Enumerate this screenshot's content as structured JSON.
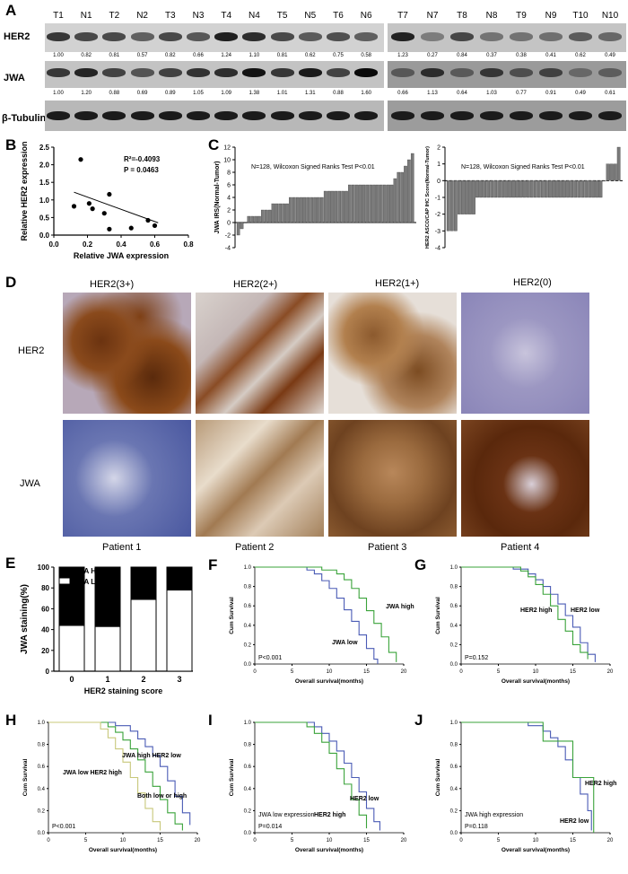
{
  "panel_labels": {
    "A": "A",
    "B": "B",
    "C": "C",
    "D": "D",
    "E": "E",
    "F": "F",
    "G": "G",
    "H": "H",
    "I": "I",
    "J": "J"
  },
  "panelA": {
    "lanes": [
      "T1",
      "N1",
      "T2",
      "N2",
      "T3",
      "N3",
      "T4",
      "N4",
      "T5",
      "N5",
      "T6",
      "N6",
      "T7",
      "N7",
      "T8",
      "N8",
      "T9",
      "N9",
      "T10",
      "N10"
    ],
    "rows": [
      "HER2",
      "JWA",
      "β-Tubulin"
    ],
    "her2_values": [
      "1.00",
      "0.82",
      "0.81",
      "0.57",
      "0.82",
      "0.66",
      "1.24",
      "1.10",
      "0.81",
      "0.62",
      "0.75",
      "0.58",
      "1.23",
      "0.27",
      "0.84",
      "0.37",
      "0.38",
      "0.41",
      "0.62",
      "0.49"
    ],
    "jwa_values": [
      "1.00",
      "1.20",
      "0.88",
      "0.69",
      "0.89",
      "1.05",
      "1.09",
      "1.38",
      "1.01",
      "1.31",
      "0.88",
      "1.60",
      "0.66",
      "1.13",
      "0.64",
      "1.03",
      "0.77",
      "0.91",
      "0.49",
      "0.61"
    ]
  },
  "panelB": {
    "r2_text": "R²=-0.4093",
    "p_text": "P = 0.0463",
    "xlabel": "Relative JWA expression",
    "ylabel": "Relative HER2 expression"
  },
  "panelC": {
    "left_text": "N=128, Wilcoxon Signed Ranks Test P<0.01",
    "left_ylabel": "JWA IRS(Normal-Tumor)",
    "right_text": "N=128, Wilcoxon Signed Ranks Test P<0.01",
    "right_ylabel": "HER2 ASCO/CAP IHC Score(Normal-Tumor)"
  },
  "panelD": {
    "columns": [
      "HER2(3+)",
      "HER2(2+)",
      "HER2(1+)",
      "HER2(0)"
    ],
    "rows": [
      "HER2",
      "JWA"
    ],
    "patients": [
      "Patient 1",
      "Patient 2",
      "Patient 3",
      "Patient 4"
    ]
  },
  "panelE": {
    "ylabel": "JWA staining(%)",
    "xlabel": "HER2 staining score",
    "legend_high": "JWA High",
    "legend_low": "JWA Low"
  },
  "panelF": {
    "ylabel": "Cum Survival",
    "xlabel": "Overall survival(months)",
    "p_text": "P<0.001",
    "label_a": "JWA low",
    "label_b": "JWA high"
  },
  "panelG": {
    "ylabel": "Cum Survival",
    "xlabel": "Overall survival(months)",
    "p_text": "P=0.152",
    "label_a": "HER2 high",
    "label_b": "HER2 low"
  },
  "panelH": {
    "ylabel": "Cum Survival",
    "xlabel": "Overall survival(months)",
    "p_text": "P<0.001",
    "label_a": "JWA high HER2 low",
    "label_b": "JWA low HER2 high",
    "label_c": "Both low or high"
  },
  "panelI": {
    "ylabel": "Cum Survival",
    "xlabel": "Overall survival(months)",
    "p_text": "P=0.014",
    "subtitle": "JWA low expression",
    "label_a": "HER2 low",
    "label_b": "HER2 high"
  },
  "panelJ": {
    "ylabel": "Cum Survival",
    "xlabel": "Overall survival(months)",
    "p_text": "P=0.118",
    "subtitle": "JWA high expression",
    "label_a": "HER2 high",
    "label_b": "HER2 low"
  },
  "chart_data": [
    {
      "type": "scatter",
      "id": "B",
      "xlabel": "Relative JWA expression",
      "ylabel": "Relative HER2 expression",
      "xlim": [
        0,
        0.8
      ],
      "ylim": [
        0,
        2.5
      ],
      "xticks": [
        "0.0",
        "0.2",
        "0.4",
        "0.6",
        "0.8"
      ],
      "yticks": [
        "0.0",
        "0.5",
        "1.0",
        "1.5",
        "2.0",
        "2.5"
      ],
      "points": [
        [
          0.12,
          0.82
        ],
        [
          0.16,
          2.15
        ],
        [
          0.21,
          0.9
        ],
        [
          0.23,
          0.75
        ],
        [
          0.3,
          0.62
        ],
        [
          0.33,
          1.16
        ],
        [
          0.33,
          0.17
        ],
        [
          0.46,
          0.2
        ],
        [
          0.56,
          0.42
        ],
        [
          0.6,
          0.27
        ]
      ],
      "fit": [
        [
          0.12,
          1.22
        ],
        [
          0.62,
          0.35
        ]
      ]
    },
    {
      "type": "bar",
      "id": "C-left",
      "ylabel": "JWA IRS(Normal-Tumor)",
      "ylim": [
        -4,
        12
      ],
      "yticks": [
        "-4",
        "-2",
        "0",
        "2",
        "4",
        "6",
        "8",
        "10",
        "12"
      ],
      "values": [
        -2,
        -1,
        0,
        1,
        1,
        1,
        1,
        2,
        2,
        2,
        3,
        3,
        3,
        3,
        3,
        4,
        4,
        4,
        4,
        4,
        4,
        4,
        4,
        4,
        4,
        5,
        5,
        5,
        5,
        5,
        5,
        5,
        6,
        6,
        6,
        6,
        6,
        6,
        6,
        6,
        6,
        6,
        6,
        6,
        6,
        7,
        8,
        8,
        9,
        10,
        11
      ]
    },
    {
      "type": "bar",
      "id": "C-right",
      "ylabel": "HER2 ASCO/CAP IHC Score(Normal-Tumor)",
      "ylim": [
        -4,
        2
      ],
      "yticks": [
        "-4",
        "-3",
        "-2",
        "-1",
        "0",
        "1",
        "2"
      ],
      "values": [
        -3,
        -3,
        -3,
        -2,
        -2,
        -2,
        -2,
        -2,
        -1,
        -1,
        -1,
        -1,
        -1,
        -1,
        -1,
        -1,
        -1,
        -1,
        -1,
        -1,
        -1,
        -1,
        -1,
        -1,
        -1,
        -1,
        -1,
        -1,
        -1,
        -1,
        -1,
        -1,
        -1,
        -1,
        -1,
        -1,
        -1,
        -1,
        -1,
        -1,
        -1,
        -1,
        -1,
        0,
        1,
        1,
        1,
        2
      ]
    },
    {
      "type": "bar",
      "id": "E",
      "categories": [
        "0",
        "1",
        "2",
        "3"
      ],
      "series": [
        {
          "name": "JWA High",
          "values": [
            56,
            57,
            31,
            22
          ]
        },
        {
          "name": "JWA Low",
          "values": [
            44,
            43,
            69,
            78
          ]
        }
      ],
      "ylim": [
        0,
        100
      ],
      "yticks": [
        "0",
        "20",
        "40",
        "60",
        "80",
        "100"
      ],
      "xlabel": "HER2 staining score",
      "ylabel": "JWA staining(%)"
    },
    {
      "type": "line",
      "id": "F",
      "xlim": [
        0,
        20
      ],
      "ylim": [
        0,
        1
      ],
      "xticks": [
        "0",
        "5",
        "10",
        "15",
        "20"
      ],
      "yticks": [
        "0.0",
        "0.2",
        "0.4",
        "0.6",
        "0.8",
        "1.0"
      ],
      "series": [
        {
          "name": "JWA low",
          "color": "#4a5bb5",
          "x": [
            0,
            5,
            7,
            8,
            9,
            10,
            11,
            12,
            13,
            14,
            15,
            16,
            16.5
          ],
          "y": [
            1,
            1,
            0.97,
            0.93,
            0.86,
            0.78,
            0.68,
            0.56,
            0.44,
            0.3,
            0.16,
            0.05,
            0
          ]
        },
        {
          "name": "JWA high",
          "color": "#3aa33a",
          "x": [
            0,
            7,
            9,
            11,
            12,
            13,
            14,
            15,
            16,
            17,
            18,
            19
          ],
          "y": [
            1,
            1,
            0.97,
            0.93,
            0.87,
            0.78,
            0.68,
            0.55,
            0.42,
            0.28,
            0.12,
            0.02
          ]
        }
      ]
    },
    {
      "type": "line",
      "id": "G",
      "xlim": [
        0,
        20
      ],
      "ylim": [
        0,
        1
      ],
      "xticks": [
        "0",
        "5",
        "10",
        "15",
        "20"
      ],
      "yticks": [
        "0.0",
        "0.2",
        "0.4",
        "0.6",
        "0.8",
        "1.0"
      ],
      "series": [
        {
          "name": "HER2 low",
          "color": "#4a5bb5",
          "x": [
            0,
            5,
            7,
            9,
            10,
            11,
            12,
            13,
            14,
            15,
            16,
            17,
            18
          ],
          "y": [
            1,
            1,
            0.98,
            0.93,
            0.87,
            0.8,
            0.72,
            0.62,
            0.5,
            0.38,
            0.22,
            0.1,
            0.02
          ]
        },
        {
          "name": "HER2 high",
          "color": "#3aa33a",
          "x": [
            0,
            6,
            8,
            9,
            10,
            11,
            12,
            13,
            14,
            15,
            16,
            17
          ],
          "y": [
            1,
            1,
            0.96,
            0.9,
            0.82,
            0.72,
            0.6,
            0.46,
            0.34,
            0.2,
            0.12,
            0.05
          ]
        }
      ]
    },
    {
      "type": "line",
      "id": "H",
      "xlim": [
        0,
        20
      ],
      "ylim": [
        0,
        1
      ],
      "xticks": [
        "0",
        "5",
        "10",
        "15",
        "20"
      ],
      "yticks": [
        "0.0",
        "0.2",
        "0.4",
        "0.6",
        "0.8",
        "1.0"
      ],
      "series": [
        {
          "name": "JWA high HER2 low",
          "color": "#4a5bb5",
          "x": [
            0,
            7,
            9,
            11,
            12,
            13,
            14,
            15,
            16,
            17,
            18,
            19
          ],
          "y": [
            1,
            1,
            0.97,
            0.92,
            0.85,
            0.78,
            0.7,
            0.6,
            0.47,
            0.33,
            0.18,
            0.07
          ]
        },
        {
          "name": "Both low or high",
          "color": "#3aa33a",
          "x": [
            0,
            6,
            8,
            9,
            10,
            11,
            12,
            13,
            14,
            15,
            16,
            17,
            18
          ],
          "y": [
            1,
            1,
            0.96,
            0.91,
            0.84,
            0.76,
            0.66,
            0.55,
            0.42,
            0.3,
            0.18,
            0.08,
            0.02
          ]
        },
        {
          "name": "JWA low HER2 high",
          "color": "#c8c87a",
          "x": [
            0,
            5,
            7,
            8,
            9,
            10,
            11,
            12,
            13,
            14,
            15
          ],
          "y": [
            1,
            1,
            0.94,
            0.86,
            0.76,
            0.64,
            0.5,
            0.36,
            0.22,
            0.1,
            0.02
          ]
        }
      ]
    },
    {
      "type": "line",
      "id": "I",
      "xlim": [
        0,
        20
      ],
      "ylim": [
        0,
        1
      ],
      "xticks": [
        "0",
        "5",
        "10",
        "15",
        "20"
      ],
      "yticks": [
        "0.0",
        "0.2",
        "0.4",
        "0.6",
        "0.8",
        "1.0"
      ],
      "series": [
        {
          "name": "HER2 low",
          "color": "#4a5bb5",
          "x": [
            0,
            6,
            8,
            9,
            10,
            11,
            12,
            13,
            14,
            15,
            16,
            16.8
          ],
          "y": [
            1,
            1,
            0.96,
            0.9,
            0.83,
            0.74,
            0.63,
            0.5,
            0.37,
            0.22,
            0.1,
            0.02
          ]
        },
        {
          "name": "HER2 high",
          "color": "#3aa33a",
          "x": [
            0,
            6,
            7,
            8,
            9,
            10,
            11,
            12,
            13,
            14,
            15
          ],
          "y": [
            1,
            1,
            0.96,
            0.9,
            0.82,
            0.72,
            0.58,
            0.44,
            0.3,
            0.16,
            0.04
          ]
        }
      ]
    },
    {
      "type": "line",
      "id": "J",
      "xlim": [
        0,
        20
      ],
      "ylim": [
        0,
        1
      ],
      "xticks": [
        "0",
        "5",
        "10",
        "15",
        "20"
      ],
      "yticks": [
        "0.0",
        "0.2",
        "0.4",
        "0.6",
        "0.8",
        "1.0"
      ],
      "series": [
        {
          "name": "HER2 low",
          "color": "#4a5bb5",
          "x": [
            0,
            7,
            9,
            11,
            12,
            13,
            14,
            15,
            16,
            17,
            17.5
          ],
          "y": [
            1,
            1,
            0.97,
            0.92,
            0.86,
            0.78,
            0.66,
            0.5,
            0.35,
            0.2,
            0.02
          ]
        },
        {
          "name": "HER2 high",
          "color": "#3aa33a",
          "x": [
            0,
            8,
            11,
            12,
            15,
            16,
            17,
            17.8
          ],
          "y": [
            1,
            1,
            0.83,
            0.83,
            0.5,
            0.5,
            0.5,
            0
          ]
        }
      ]
    }
  ]
}
